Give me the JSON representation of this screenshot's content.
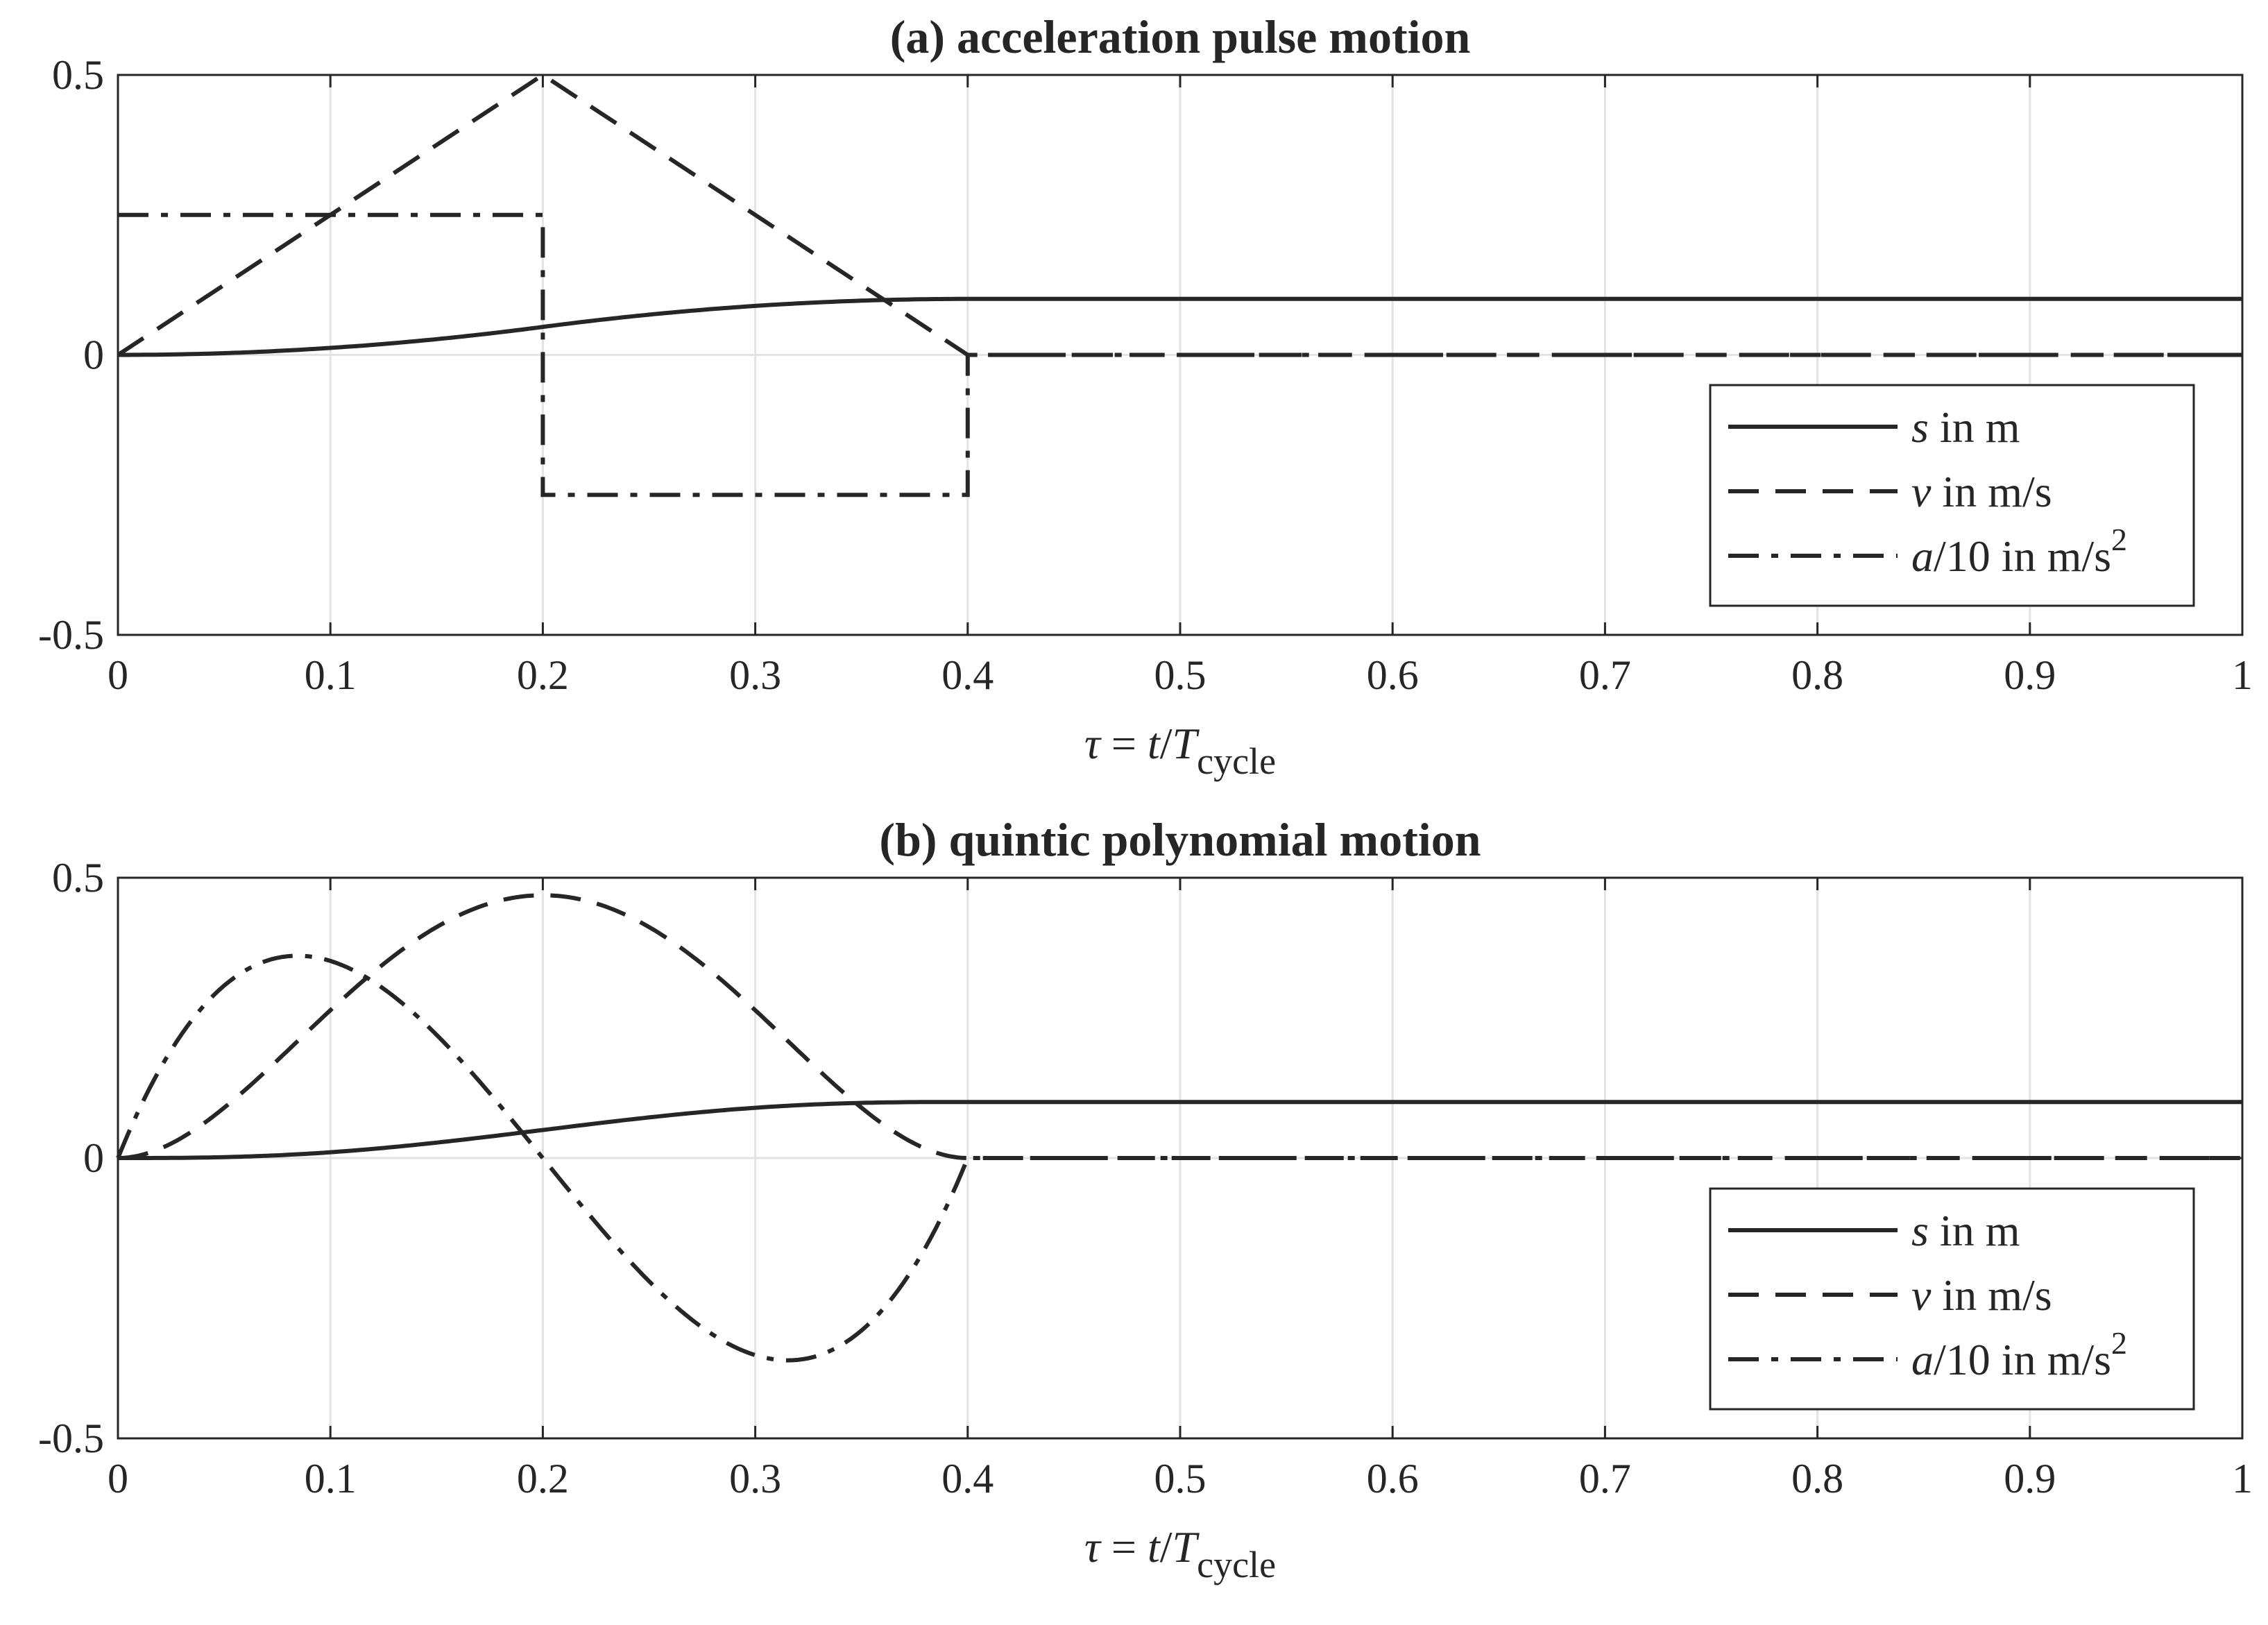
{
  "chart_data": [
    {
      "type": "line",
      "title": "(a) acceleration pulse motion",
      "xlabel": {
        "var": "τ",
        "eq": " = ",
        "t": "t",
        "slash": "/",
        "T": "T",
        "sub": "cycle"
      },
      "ylabel": "",
      "xlim": [
        0,
        1
      ],
      "ylim": [
        -0.5,
        0.5
      ],
      "xticks": [
        0,
        0.1,
        0.2,
        0.3,
        0.4,
        0.5,
        0.6,
        0.7,
        0.8,
        0.9,
        1
      ],
      "xtick_labels": [
        "0",
        "0.1",
        "0.2",
        "0.3",
        "0.4",
        "0.5",
        "0.6",
        "0.7",
        "0.8",
        "0.9",
        "1"
      ],
      "yticks": [
        -0.5,
        0,
        0.5
      ],
      "ytick_labels": [
        "-0.5",
        "0",
        "0.5"
      ],
      "grid": true,
      "legend_position": "lower-right",
      "profile": "pulse",
      "rise_end": 0.4,
      "series": [
        {
          "name": "s",
          "var": "s",
          "unit": "in m",
          "style": "solid",
          "x": [
            0,
            0.05,
            0.1,
            0.15,
            0.2,
            0.25,
            0.3,
            0.35,
            0.4,
            1
          ],
          "values": [
            0,
            0.003,
            0.0125,
            0.0281,
            0.05,
            0.0719,
            0.0875,
            0.0969,
            0.1,
            0.1
          ]
        },
        {
          "name": "v",
          "var": "v",
          "unit": "in m/s",
          "style": "dashed",
          "x": [
            0,
            0.2,
            0.4,
            1
          ],
          "values": [
            0,
            0.5,
            0,
            0
          ]
        },
        {
          "name": "a/10",
          "var": "a",
          "unit": "/10 in m/s",
          "sup": "2",
          "style": "dashdot",
          "x": [
            0,
            0.2,
            0.2,
            0.4,
            0.4,
            1
          ],
          "values": [
            0.25,
            0.25,
            -0.25,
            -0.25,
            0,
            0
          ]
        }
      ]
    },
    {
      "type": "line",
      "title": "(b) quintic polynomial motion",
      "xlabel": {
        "var": "τ",
        "eq": " = ",
        "t": "t",
        "slash": "/",
        "T": "T",
        "sub": "cycle"
      },
      "ylabel": "",
      "xlim": [
        0,
        1
      ],
      "ylim": [
        -0.5,
        0.5
      ],
      "xticks": [
        0,
        0.1,
        0.2,
        0.3,
        0.4,
        0.5,
        0.6,
        0.7,
        0.8,
        0.9,
        1
      ],
      "xtick_labels": [
        "0",
        "0.1",
        "0.2",
        "0.3",
        "0.4",
        "0.5",
        "0.6",
        "0.7",
        "0.8",
        "0.9",
        "1"
      ],
      "yticks": [
        -0.5,
        0,
        0.5
      ],
      "ytick_labels": [
        "-0.5",
        "0",
        "0.5"
      ],
      "grid": true,
      "legend_position": "lower-right",
      "profile": "quintic",
      "rise_end": 0.4,
      "series": [
        {
          "name": "s",
          "var": "s",
          "unit": "in m",
          "style": "solid",
          "x": [
            0,
            0.1,
            0.2,
            0.3,
            0.4,
            1
          ],
          "values": [
            0,
            0.0104,
            0.05,
            0.0896,
            0.1,
            0.1
          ]
        },
        {
          "name": "v",
          "var": "v",
          "unit": "in m/s",
          "style": "dashed",
          "x": [
            0,
            0.1,
            0.2,
            0.3,
            0.4,
            1
          ],
          "values": [
            0,
            0.264,
            0.469,
            0.264,
            0,
            0
          ]
        },
        {
          "name": "a/10",
          "var": "a",
          "unit": "/10 in m/s",
          "sup": "2",
          "style": "dashdot",
          "x": [
            0,
            0.085,
            0.2,
            0.315,
            0.4,
            1
          ],
          "values": [
            0,
            0.361,
            0,
            -0.361,
            0,
            0
          ]
        }
      ]
    }
  ]
}
